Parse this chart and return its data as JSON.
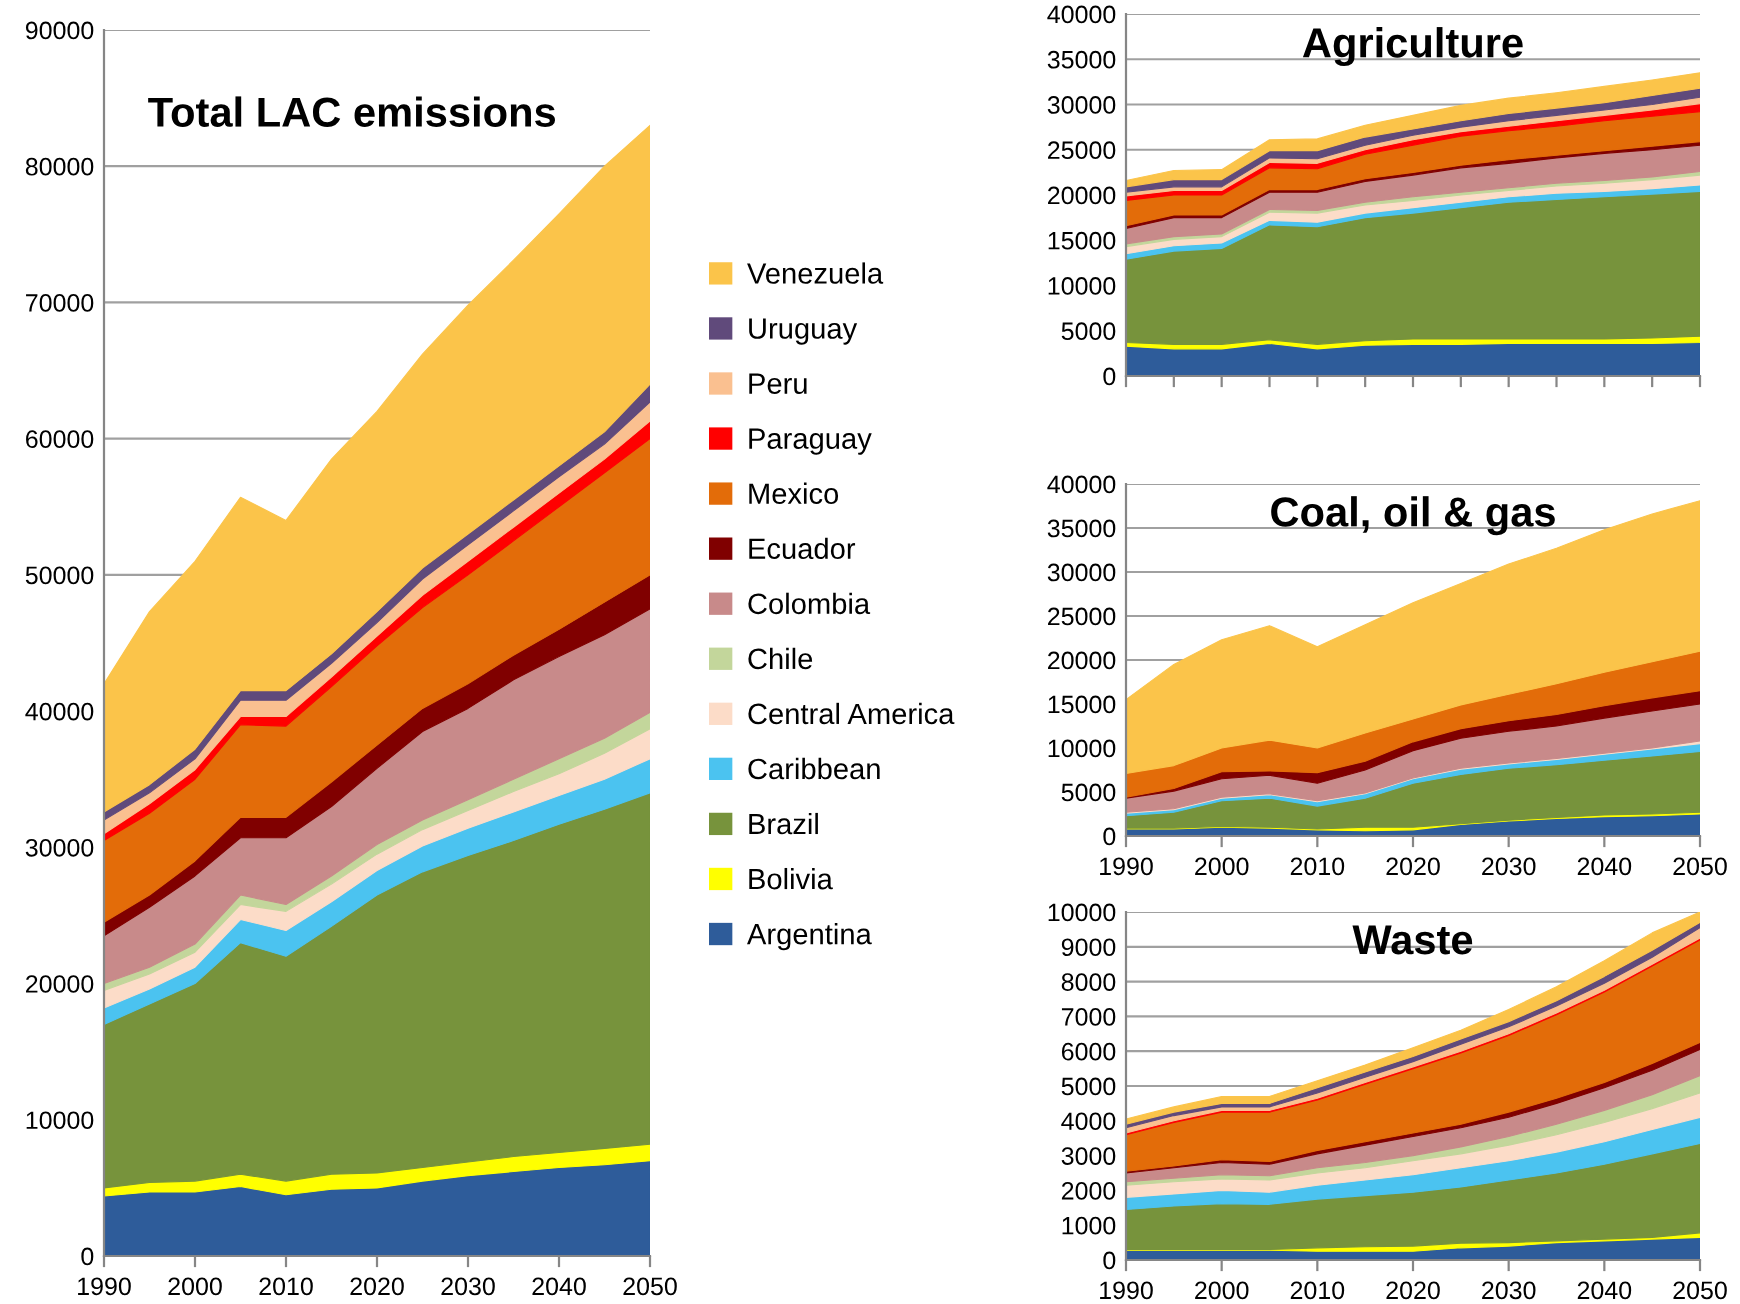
{
  "chart_data": [
    {
      "type": "area",
      "stacked": true,
      "title": "Total LAC emissions",
      "x": [
        1990,
        1995,
        2000,
        2005,
        2010,
        2015,
        2020,
        2025,
        2030,
        2035,
        2040,
        2045,
        2050
      ],
      "xlim": [
        1990,
        2050
      ],
      "xticks": [
        1990,
        2000,
        2010,
        2020,
        2030,
        2040,
        2050
      ],
      "ylim": [
        0,
        90000
      ],
      "yticks": [
        0,
        10000,
        20000,
        30000,
        40000,
        50000,
        60000,
        70000,
        80000,
        90000
      ],
      "grid": "y",
      "legend": "right",
      "series": [
        {
          "name": "Argentina",
          "color": "#2e5c9a",
          "values": [
            4400,
            4700,
            4700,
            5100,
            4500,
            4900,
            5000,
            5500,
            5900,
            6200,
            6500,
            6700,
            7000
          ]
        },
        {
          "name": "Bolivia",
          "color": "#ffff00",
          "values": [
            600,
            700,
            800,
            900,
            1000,
            1100,
            1100,
            1000,
            1000,
            1100,
            1100,
            1200,
            1200
          ]
        },
        {
          "name": "Brazil",
          "color": "#77933c",
          "values": [
            12000,
            13100,
            14500,
            17000,
            16500,
            18200,
            20400,
            21700,
            22500,
            23200,
            24100,
            24900,
            25800
          ]
        },
        {
          "name": "Caribbean",
          "color": "#4bc3f0",
          "values": [
            1200,
            1100,
            1200,
            1700,
            1900,
            1800,
            1800,
            1900,
            2000,
            2100,
            2100,
            2200,
            2500
          ]
        },
        {
          "name": "Central America",
          "color": "#fcdcc8",
          "values": [
            1300,
            1100,
            1100,
            1100,
            1400,
            1300,
            1200,
            1200,
            1300,
            1500,
            1600,
            1900,
            2200
          ]
        },
        {
          "name": "Chile",
          "color": "#c3d69b",
          "values": [
            500,
            500,
            600,
            700,
            500,
            600,
            700,
            700,
            800,
            900,
            1100,
            1100,
            1200
          ]
        },
        {
          "name": "Colombia",
          "color": "#c88a8a",
          "values": [
            3500,
            4400,
            5000,
            4200,
            4900,
            5100,
            5600,
            6500,
            6700,
            7300,
            7500,
            7600,
            7600
          ]
        },
        {
          "name": "Ecuador",
          "color": "#800000",
          "values": [
            1000,
            900,
            1100,
            1500,
            1500,
            1800,
            1700,
            1700,
            1800,
            1800,
            2000,
            2400,
            2500
          ]
        },
        {
          "name": "Mexico",
          "color": "#e36c09",
          "values": [
            6000,
            6000,
            6000,
            6800,
            6700,
            7000,
            7300,
            7400,
            8000,
            8400,
            9000,
            9500,
            10000
          ]
        },
        {
          "name": "Paraguay",
          "color": "#ff0000",
          "values": [
            500,
            700,
            700,
            600,
            700,
            700,
            700,
            900,
            1000,
            1000,
            1000,
            1000,
            1300
          ]
        },
        {
          "name": "Peru",
          "color": "#fac090",
          "values": [
            1000,
            800,
            800,
            1200,
            1200,
            1000,
            1000,
            1200,
            1200,
            1200,
            1200,
            1100,
            1400
          ]
        },
        {
          "name": "Uruguay",
          "color": "#604a7b",
          "values": [
            600,
            600,
            700,
            700,
            700,
            700,
            800,
            800,
            800,
            800,
            800,
            900,
            1300
          ]
        },
        {
          "name": "Venezuela",
          "color": "#fbc44a",
          "values": [
            9400,
            12700,
            13800,
            14200,
            12500,
            14300,
            14700,
            15700,
            16800,
            17600,
            18500,
            19500,
            19000
          ]
        }
      ]
    },
    {
      "type": "area",
      "stacked": true,
      "title": "Agriculture",
      "x": [
        1990,
        1995,
        2000,
        2005,
        2010,
        2015,
        2020,
        2025,
        2030,
        2035,
        2040,
        2045,
        2050
      ],
      "xlim": [
        1990,
        2050
      ],
      "xticks": [
        {
          "value": 1990,
          "label": null
        },
        {
          "value": 1995,
          "label": null
        },
        {
          "value": 2000,
          "label": null
        },
        {
          "value": 2005,
          "label": null
        },
        {
          "value": 2010,
          "label": null
        },
        {
          "value": 2015,
          "label": null
        },
        {
          "value": 2020,
          "label": null
        },
        {
          "value": 2025,
          "label": null
        },
        {
          "value": 2030,
          "label": null
        },
        {
          "value": 2035,
          "label": null
        },
        {
          "value": 2040,
          "label": null
        },
        {
          "value": 2045,
          "label": null
        },
        {
          "value": 2050,
          "label": null
        }
      ],
      "ylim": [
        0,
        40000
      ],
      "yticks": [
        0,
        5000,
        10000,
        15000,
        20000,
        25000,
        30000,
        35000,
        40000
      ],
      "grid": "y",
      "tick_labels": "y",
      "series": [
        {
          "color": "#2e5c9a",
          "values": [
            3300,
            3000,
            3000,
            3600,
            3000,
            3400,
            3500,
            3500,
            3600,
            3600,
            3600,
            3600,
            3700
          ]
        },
        {
          "color": "#ffff00",
          "values": [
            400,
            500,
            500,
            400,
            500,
            500,
            600,
            600,
            500,
            500,
            500,
            600,
            700
          ]
        },
        {
          "color": "#77933c",
          "values": [
            9200,
            10300,
            10600,
            12700,
            13000,
            13600,
            13900,
            14500,
            15100,
            15400,
            15700,
            15900,
            16000
          ]
        },
        {
          "color": "#4bc3f0",
          "values": [
            600,
            600,
            600,
            500,
            500,
            500,
            600,
            600,
            600,
            700,
            600,
            600,
            700
          ]
        },
        {
          "color": "#fcdcc8",
          "values": [
            800,
            700,
            700,
            900,
            1000,
            900,
            800,
            800,
            700,
            800,
            900,
            1000,
            1100
          ]
        },
        {
          "color": "#c3d69b",
          "values": [
            300,
            300,
            300,
            300,
            300,
            300,
            400,
            300,
            300,
            300,
            300,
            300,
            400
          ]
        },
        {
          "color": "#c88a8a",
          "values": [
            1700,
            2100,
            1800,
            1900,
            2000,
            2300,
            2400,
            2700,
            2700,
            2800,
            3000,
            3000,
            2900
          ]
        },
        {
          "color": "#800000",
          "values": [
            300,
            300,
            300,
            300,
            300,
            300,
            300,
            300,
            400,
            300,
            300,
            400,
            400
          ]
        },
        {
          "color": "#e36c09",
          "values": [
            2800,
            2200,
            2200,
            2400,
            2300,
            2700,
            3000,
            3200,
            3200,
            3200,
            3300,
            3300,
            3300
          ]
        },
        {
          "color": "#ff0000",
          "values": [
            500,
            500,
            500,
            600,
            600,
            500,
            600,
            500,
            500,
            600,
            600,
            700,
            900
          ]
        },
        {
          "color": "#fac090",
          "values": [
            400,
            400,
            400,
            500,
            500,
            500,
            500,
            500,
            600,
            600,
            600,
            600,
            700
          ]
        },
        {
          "color": "#604a7b",
          "values": [
            600,
            800,
            800,
            800,
            900,
            900,
            700,
            700,
            800,
            800,
            800,
            1000,
            1000
          ]
        },
        {
          "color": "#fbc44a",
          "values": [
            700,
            1000,
            1100,
            1200,
            1300,
            1300,
            1500,
            1700,
            1700,
            1700,
            1800,
            1700,
            1700
          ]
        }
      ]
    },
    {
      "type": "area",
      "stacked": true,
      "title": "Coal, oil & gas",
      "x": [
        1990,
        1995,
        2000,
        2005,
        2010,
        2015,
        2020,
        2025,
        2030,
        2035,
        2040,
        2045,
        2050
      ],
      "xlim": [
        1990,
        2050
      ],
      "xticks": [
        1990,
        2000,
        2010,
        2020,
        2030,
        2040,
        2050
      ],
      "ylim": [
        0,
        40000
      ],
      "yticks": [
        0,
        5000,
        10000,
        15000,
        20000,
        25000,
        30000,
        35000,
        40000
      ],
      "grid": "y",
      "series": [
        {
          "color": "#2e5c9a",
          "values": [
            800,
            800,
            1000,
            900,
            700,
            600,
            700,
            1300,
            1700,
            2000,
            2200,
            2300,
            2500
          ]
        },
        {
          "color": "#ffff00",
          "values": [
            100,
            100,
            100,
            100,
            100,
            400,
            300,
            100,
            100,
            100,
            200,
            200,
            200
          ]
        },
        {
          "color": "#77933c",
          "values": [
            1400,
            1800,
            2900,
            3300,
            2600,
            3300,
            5000,
            5600,
            5900,
            6000,
            6200,
            6600,
            6900
          ]
        },
        {
          "color": "#4bc3f0",
          "values": [
            300,
            300,
            300,
            400,
            500,
            500,
            500,
            600,
            500,
            600,
            700,
            800,
            900
          ]
        },
        {
          "color": "#fcdcc8",
          "values": [
            100,
            100,
            100,
            100,
            100,
            100,
            100,
            100,
            100,
            100,
            100,
            100,
            300
          ]
        },
        {
          "color": "#c88a8a",
          "values": [
            1600,
            2000,
            2100,
            2100,
            2000,
            2600,
            3100,
            3400,
            3600,
            3700,
            4000,
            4200,
            4200
          ]
        },
        {
          "color": "#800000",
          "values": [
            100,
            300,
            800,
            500,
            1200,
            1000,
            1000,
            1100,
            1200,
            1300,
            1400,
            1500,
            1500
          ]
        },
        {
          "color": "#e36c09",
          "values": [
            2700,
            2600,
            2700,
            3500,
            2800,
            3200,
            2600,
            2700,
            3000,
            3500,
            3800,
            4100,
            4500
          ]
        },
        {
          "color": "#fbc44a",
          "values": [
            8400,
            11500,
            12300,
            13000,
            11500,
            12300,
            13200,
            13800,
            14800,
            15400,
            16200,
            16800,
            17100
          ]
        }
      ]
    },
    {
      "type": "area",
      "stacked": true,
      "title": "Waste",
      "x": [
        1990,
        1995,
        2000,
        2005,
        2010,
        2015,
        2020,
        2025,
        2030,
        2035,
        2040,
        2045,
        2050
      ],
      "xlim": [
        1990,
        2050
      ],
      "xticks": [
        1990,
        2000,
        2010,
        2020,
        2030,
        2040,
        2050
      ],
      "ylim": [
        0,
        10000
      ],
      "yticks": [
        0,
        1000,
        2000,
        3000,
        4000,
        5000,
        6000,
        7000,
        8000,
        9000,
        10000
      ],
      "grid": "y",
      "series": [
        {
          "color": "#2e5c9a",
          "values": [
            280,
            280,
            280,
            280,
            250,
            250,
            250,
            350,
            400,
            500,
            550,
            600,
            650
          ]
        },
        {
          "color": "#ffff00",
          "values": [
            20,
            20,
            20,
            20,
            100,
            130,
            150,
            130,
            100,
            50,
            50,
            50,
            130
          ]
        },
        {
          "color": "#77933c",
          "values": [
            1150,
            1250,
            1320,
            1300,
            1400,
            1470,
            1550,
            1620,
            1800,
            1950,
            2150,
            2400,
            2570
          ]
        },
        {
          "color": "#4bc3f0",
          "values": [
            350,
            350,
            380,
            350,
            400,
            450,
            500,
            550,
            550,
            600,
            650,
            700,
            750
          ]
        },
        {
          "color": "#fcdcc8",
          "values": [
            350,
            350,
            330,
            350,
            350,
            350,
            400,
            400,
            450,
            500,
            550,
            600,
            700
          ]
        },
        {
          "color": "#c3d69b",
          "values": [
            100,
            100,
            120,
            120,
            150,
            150,
            150,
            200,
            250,
            300,
            350,
            400,
            500
          ]
        },
        {
          "color": "#c88a8a",
          "values": [
            250,
            300,
            350,
            330,
            400,
            500,
            550,
            550,
            550,
            600,
            650,
            700,
            750
          ]
        },
        {
          "color": "#800000",
          "values": [
            50,
            50,
            80,
            80,
            100,
            100,
            100,
            100,
            150,
            150,
            150,
            200,
            200
          ]
        },
        {
          "color": "#e36c09",
          "values": [
            1050,
            1250,
            1370,
            1420,
            1450,
            1650,
            1850,
            2050,
            2200,
            2400,
            2600,
            2800,
            2950
          ]
        },
        {
          "color": "#ff0000",
          "values": [
            50,
            50,
            50,
            50,
            50,
            50,
            50,
            50,
            50,
            50,
            50,
            50,
            50
          ]
        },
        {
          "color": "#fac090",
          "values": [
            150,
            150,
            100,
            100,
            150,
            150,
            150,
            200,
            200,
            200,
            200,
            200,
            300
          ]
        },
        {
          "color": "#604a7b",
          "values": [
            100,
            100,
            100,
            100,
            150,
            150,
            150,
            150,
            150,
            150,
            200,
            200,
            150
          ]
        },
        {
          "color": "#fbc44a",
          "values": [
            150,
            150,
            200,
            200,
            200,
            200,
            250,
            250,
            350,
            400,
            450,
            500,
            300
          ]
        }
      ]
    }
  ]
}
